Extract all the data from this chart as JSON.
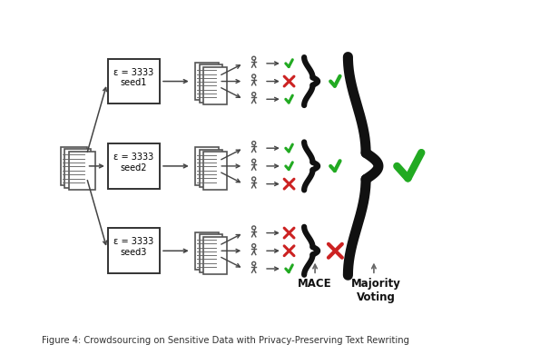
{
  "title": "",
  "caption": "Figure 4: Crowdsourcing on Sensitive Data with Privacy-Preserving Text Rewriting",
  "background_color": "#ffffff",
  "figsize": [
    6.06,
    3.8
  ],
  "dpi": 100,
  "seeds": [
    "seed1",
    "seed2",
    "seed3"
  ],
  "epsilon": "ε = 3333",
  "mace_label": "MACE",
  "majority_label": "Majority\nVoting",
  "seed_results": [
    {
      "workers": [
        true,
        false,
        true
      ],
      "group_result": true
    },
    {
      "workers": [
        true,
        true,
        false
      ],
      "group_result": true
    },
    {
      "workers": [
        false,
        false,
        true
      ],
      "group_result": false
    }
  ],
  "final_result": true,
  "check_color": "#22aa22",
  "cross_color": "#cc2222",
  "text_color": "#000000",
  "arrow_color": "#444444",
  "brace_lw": 4.5,
  "large_brace_lw": 8.0
}
